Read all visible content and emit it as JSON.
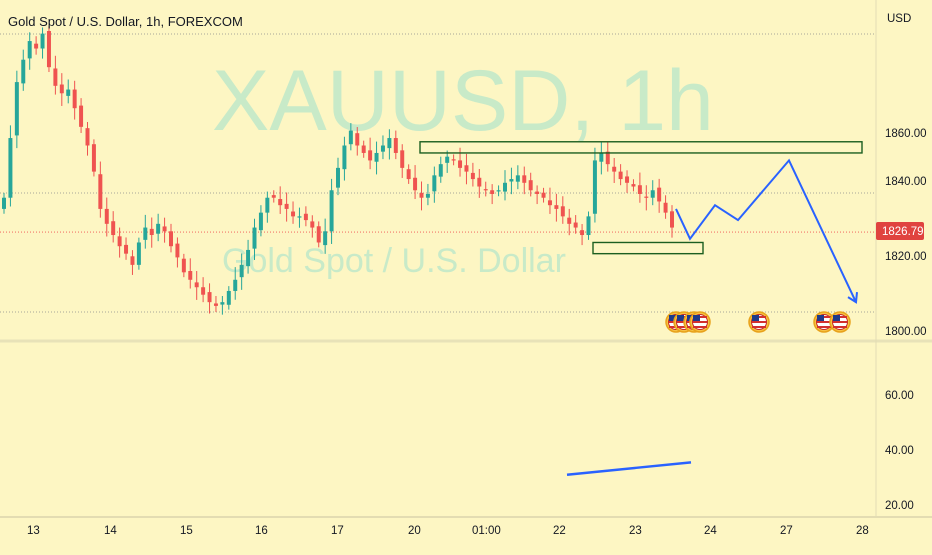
{
  "header": {
    "symbol_title": "Gold Spot / U.S. Dollar, 1h, FOREXCOM"
  },
  "watermark": {
    "ticker": "XAUUSD, 1h",
    "description": "Gold Spot / U.S. Dollar"
  },
  "price_axis": {
    "currency": "USD",
    "labels": [
      "1860.00",
      "1840.00",
      "1820.00",
      "1800.00"
    ],
    "current_price": "1826.79"
  },
  "indicator_axis": {
    "labels": [
      "60.00",
      "40.00",
      "20.00"
    ]
  },
  "time_axis": {
    "labels": [
      "13",
      "14",
      "15",
      "16",
      "17",
      "20",
      "01:00",
      "22",
      "23",
      "24",
      "27",
      "28"
    ]
  },
  "colors": {
    "background": "#fdf6c3",
    "up": "#26a69a",
    "down": "#ef5350",
    "projection": "#2962ff",
    "zones": "#1b5e20",
    "current_price_badge": "#e0433f",
    "watermark": "#bfe8c9"
  },
  "event_icons": [
    "us-flag-icon",
    "us-flag-icon",
    "us-flag-icon",
    "us-flag-icon",
    "us-flag-icon",
    "us-flag-icon",
    "us-flag-icon"
  ],
  "chart_data": {
    "type": "candlestick",
    "symbol": "XAUUSD",
    "timeframe": "1h",
    "currency": "USD",
    "y_range": [
      1797,
      1883
    ],
    "close_series": [
      1836,
      1852,
      1867,
      1873,
      1878,
      1876,
      1880,
      1871,
      1866,
      1864,
      1865,
      1860,
      1855,
      1850,
      1843,
      1833,
      1829,
      1826,
      1823,
      1821,
      1818,
      1824,
      1828,
      1826,
      1829,
      1827,
      1823,
      1820,
      1816,
      1814,
      1812,
      1810,
      1808,
      1807,
      1808,
      1811,
      1814,
      1818,
      1822,
      1828,
      1832,
      1836,
      1836,
      1834,
      1833,
      1831,
      1831,
      1830,
      1828,
      1824,
      1827,
      1838,
      1844,
      1850,
      1854,
      1850,
      1848,
      1846,
      1848,
      1850,
      1852,
      1848,
      1844,
      1841,
      1838,
      1836,
      1837,
      1842,
      1845,
      1847,
      1846,
      1844,
      1843,
      1841,
      1839,
      1838,
      1837,
      1838,
      1840,
      1841,
      1842,
      1840,
      1838,
      1837,
      1836,
      1834,
      1833,
      1831,
      1829,
      1828,
      1826,
      1831,
      1846,
      1848,
      1845,
      1843,
      1841,
      1840,
      1839,
      1837,
      1836,
      1838,
      1835,
      1832,
      1828
    ],
    "current_price": 1826.79,
    "annotations": {
      "resistance_zone": {
        "price_range": [
          1848,
          1851
        ]
      },
      "support_zone": {
        "price_range": [
          1821,
          1824
        ]
      },
      "projection_path_prices": [
        1833,
        1825,
        1834,
        1830,
        1846,
        1808
      ]
    },
    "indicator_pane": {
      "y_range": [
        20,
        70
      ],
      "trend_line": [
        31,
        35.5
      ]
    }
  }
}
